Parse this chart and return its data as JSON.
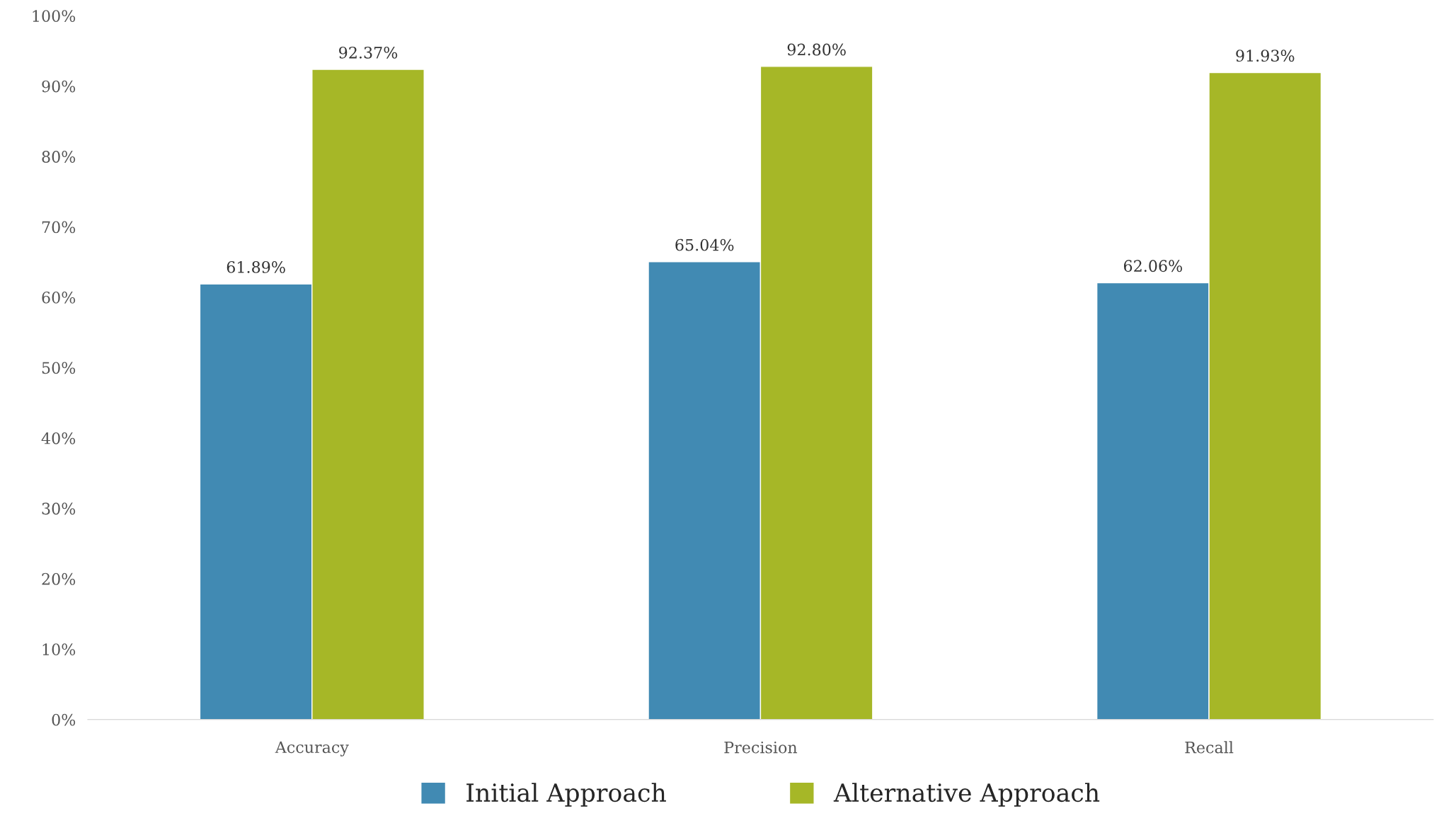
{
  "chart_data": {
    "type": "bar",
    "categories": [
      "Accuracy",
      "Precision",
      "Recall"
    ],
    "series": [
      {
        "name": "Initial Approach",
        "color": "#418ab3",
        "values": [
          61.89,
          65.04,
          62.06
        ],
        "value_labels": [
          "61.89%",
          "65.04%",
          "62.06%"
        ]
      },
      {
        "name": "Alternative Approach",
        "color": "#a6b727",
        "values": [
          92.37,
          92.8,
          91.93
        ],
        "value_labels": [
          "92.37%",
          "92.80%",
          "91.93%"
        ]
      }
    ],
    "ylim": [
      0,
      100
    ],
    "yticks": [
      {
        "value": 0,
        "label": "0%"
      },
      {
        "value": 10,
        "label": "10%"
      },
      {
        "value": 20,
        "label": "20%"
      },
      {
        "value": 30,
        "label": "30%"
      },
      {
        "value": 40,
        "label": "40%"
      },
      {
        "value": 50,
        "label": "50%"
      },
      {
        "value": 60,
        "label": "60%"
      },
      {
        "value": 70,
        "label": "70%"
      },
      {
        "value": 80,
        "label": "80%"
      },
      {
        "value": 90,
        "label": "90%"
      },
      {
        "value": 100,
        "label": "100%"
      }
    ],
    "grid": false,
    "legend": "bottom"
  }
}
